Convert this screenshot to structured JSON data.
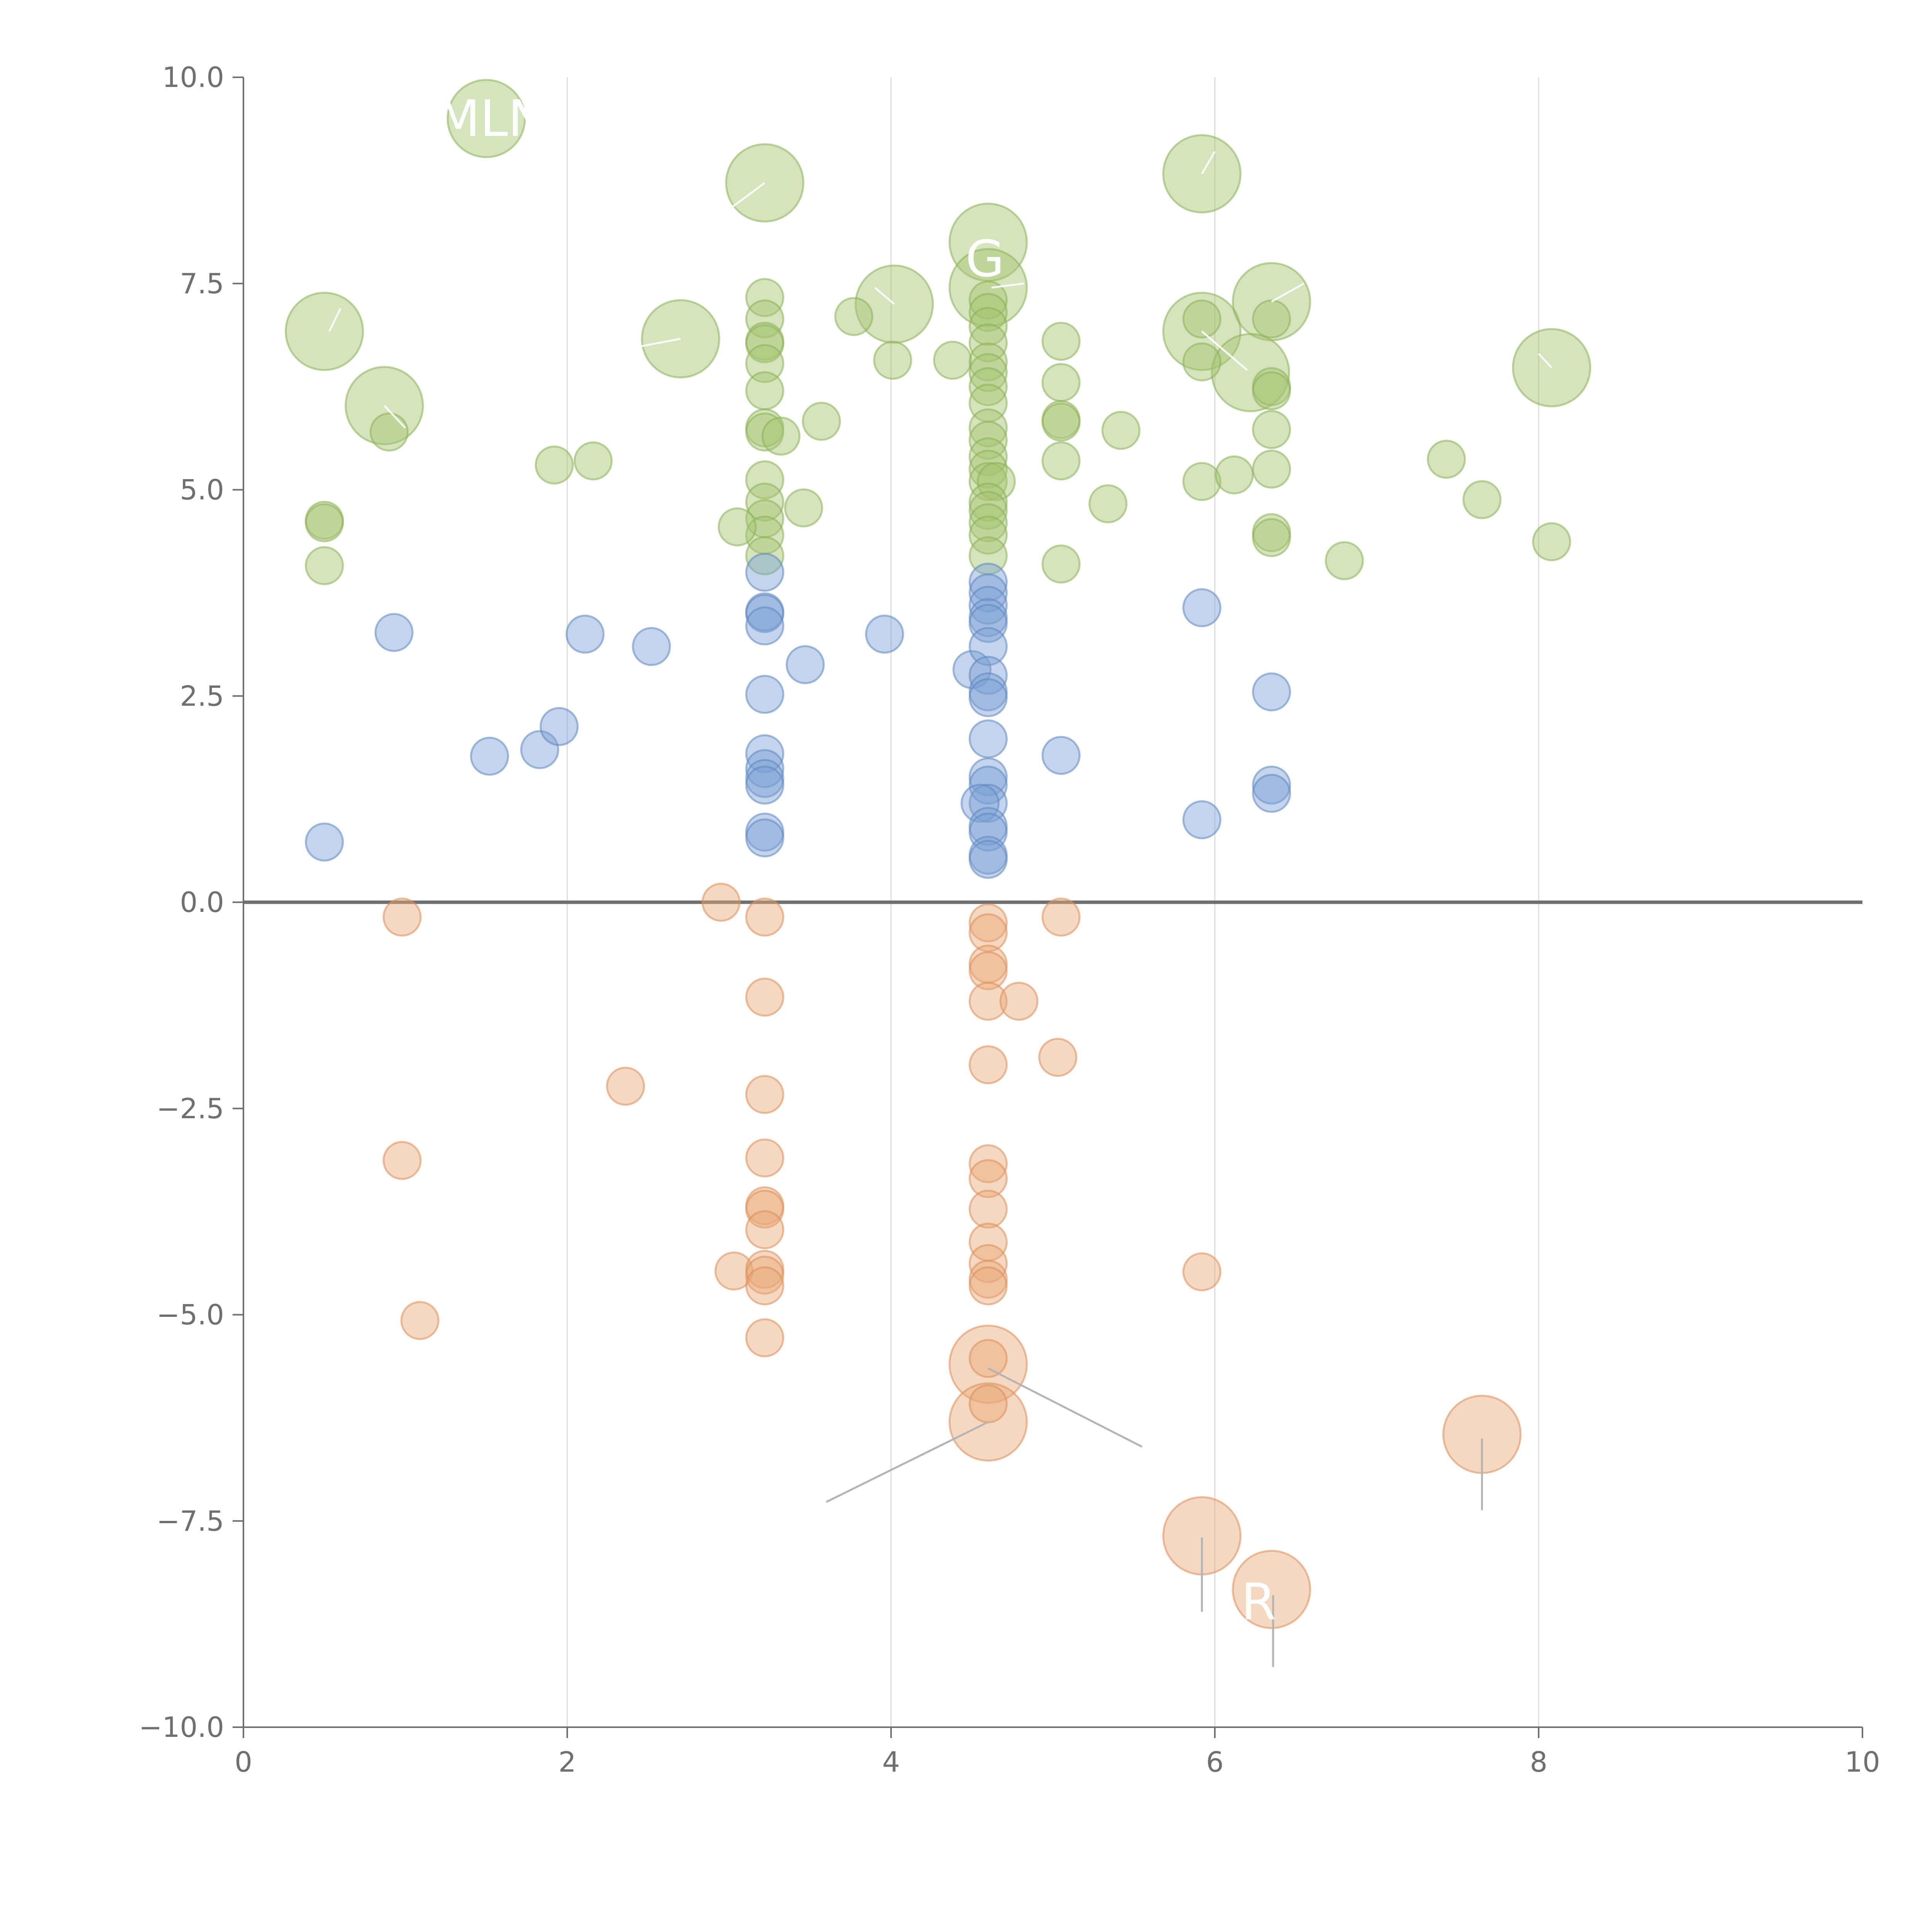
{
  "chart_data": {
    "type": "scatter",
    "title": "",
    "xlabel": "",
    "ylabel": "",
    "xlim": [
      0,
      10
    ],
    "ylim": [
      -10,
      10
    ],
    "x_ticks": [
      0,
      2,
      4,
      6,
      8,
      10
    ],
    "y_ticks": [
      -10,
      -7.5,
      -5,
      -2.5,
      0,
      2.5,
      5,
      7.5,
      10
    ],
    "x_tick_labels": [
      "0",
      "2",
      "4",
      "6",
      "8",
      "10"
    ],
    "y_tick_labels": [
      "−10.0",
      "−7.5",
      "−5.0",
      "−2.5",
      "0.0",
      "2.5",
      "5.0",
      "7.5",
      "10.0"
    ],
    "grid": "vertical",
    "zero_line": true,
    "legend": "none",
    "series": [
      {
        "name": "green",
        "color": "#a3c46e",
        "stroke": "#8ab055",
        "points": [
          {
            "x": 1.5,
            "y": 9.5,
            "s": "large"
          },
          {
            "x": 3.22,
            "y": 8.72,
            "s": "large"
          },
          {
            "x": 5.92,
            "y": 8.83,
            "s": "large"
          },
          {
            "x": 4.6,
            "y": 8.0,
            "s": "large"
          },
          {
            "x": 4.6,
            "y": 7.45,
            "s": "large"
          },
          {
            "x": 4.02,
            "y": 7.25,
            "s": "large"
          },
          {
            "x": 6.35,
            "y": 7.28,
            "s": "large"
          },
          {
            "x": 0.5,
            "y": 6.92,
            "s": "large"
          },
          {
            "x": 2.7,
            "y": 6.83,
            "s": "large"
          },
          {
            "x": 5.92,
            "y": 6.92,
            "s": "large"
          },
          {
            "x": 6.22,
            "y": 6.42,
            "s": "large"
          },
          {
            "x": 8.08,
            "y": 6.48,
            "s": "large"
          },
          {
            "x": 0.87,
            "y": 6.02,
            "s": "large"
          },
          {
            "x": 0.9,
            "y": 5.7
          },
          {
            "x": 0.5,
            "y": 4.63
          },
          {
            "x": 0.5,
            "y": 4.6
          },
          {
            "x": 0.5,
            "y": 4.08
          },
          {
            "x": 1.92,
            "y": 5.3
          },
          {
            "x": 2.16,
            "y": 5.35
          },
          {
            "x": 3.22,
            "y": 7.33
          },
          {
            "x": 3.22,
            "y": 7.07
          },
          {
            "x": 3.22,
            "y": 6.8
          },
          {
            "x": 3.22,
            "y": 6.77
          },
          {
            "x": 3.22,
            "y": 6.53
          },
          {
            "x": 3.22,
            "y": 6.2
          },
          {
            "x": 3.22,
            "y": 5.75
          },
          {
            "x": 3.22,
            "y": 5.7
          },
          {
            "x": 3.22,
            "y": 5.12
          },
          {
            "x": 3.22,
            "y": 4.85
          },
          {
            "x": 3.22,
            "y": 4.65
          },
          {
            "x": 3.22,
            "y": 4.45
          },
          {
            "x": 3.22,
            "y": 4.2
          },
          {
            "x": 3.05,
            "y": 4.55
          },
          {
            "x": 3.32,
            "y": 5.65
          },
          {
            "x": 3.46,
            "y": 4.78
          },
          {
            "x": 3.57,
            "y": 5.83
          },
          {
            "x": 3.77,
            "y": 7.1
          },
          {
            "x": 4.01,
            "y": 6.57
          },
          {
            "x": 4.38,
            "y": 6.57
          },
          {
            "x": 4.6,
            "y": 7.3
          },
          {
            "x": 4.6,
            "y": 7.15
          },
          {
            "x": 4.6,
            "y": 6.98
          },
          {
            "x": 4.6,
            "y": 6.78
          },
          {
            "x": 4.6,
            "y": 6.55
          },
          {
            "x": 4.6,
            "y": 6.42
          },
          {
            "x": 4.6,
            "y": 6.25
          },
          {
            "x": 4.6,
            "y": 6.05
          },
          {
            "x": 4.6,
            "y": 5.75
          },
          {
            "x": 4.6,
            "y": 5.6
          },
          {
            "x": 4.6,
            "y": 5.4
          },
          {
            "x": 4.6,
            "y": 5.25
          },
          {
            "x": 4.6,
            "y": 5.1
          },
          {
            "x": 4.65,
            "y": 5.1
          },
          {
            "x": 4.6,
            "y": 4.85
          },
          {
            "x": 4.6,
            "y": 4.75
          },
          {
            "x": 4.6,
            "y": 4.6
          },
          {
            "x": 4.6,
            "y": 4.45
          },
          {
            "x": 4.6,
            "y": 4.2
          },
          {
            "x": 5.05,
            "y": 6.8
          },
          {
            "x": 5.05,
            "y": 6.3
          },
          {
            "x": 5.05,
            "y": 5.85
          },
          {
            "x": 5.05,
            "y": 5.82
          },
          {
            "x": 5.05,
            "y": 5.35
          },
          {
            "x": 5.05,
            "y": 4.1
          },
          {
            "x": 5.34,
            "y": 4.83
          },
          {
            "x": 5.42,
            "y": 5.72
          },
          {
            "x": 5.92,
            "y": 7.07
          },
          {
            "x": 5.92,
            "y": 6.55
          },
          {
            "x": 5.92,
            "y": 5.1
          },
          {
            "x": 6.12,
            "y": 5.18
          },
          {
            "x": 6.35,
            "y": 7.07
          },
          {
            "x": 6.35,
            "y": 6.25
          },
          {
            "x": 6.35,
            "y": 6.2
          },
          {
            "x": 6.35,
            "y": 5.73
          },
          {
            "x": 6.35,
            "y": 5.25
          },
          {
            "x": 6.35,
            "y": 4.48
          },
          {
            "x": 6.35,
            "y": 4.42
          },
          {
            "x": 6.8,
            "y": 4.14
          },
          {
            "x": 7.43,
            "y": 5.37
          },
          {
            "x": 7.65,
            "y": 4.88
          },
          {
            "x": 8.08,
            "y": 4.37
          }
        ]
      },
      {
        "name": "blue",
        "color": "#7aa0d4",
        "stroke": "#5f86c0",
        "points": [
          {
            "x": 0.93,
            "y": 3.27
          },
          {
            "x": 0.5,
            "y": 0.73
          },
          {
            "x": 1.52,
            "y": 1.77
          },
          {
            "x": 1.83,
            "y": 1.85
          },
          {
            "x": 1.95,
            "y": 2.13
          },
          {
            "x": 2.11,
            "y": 3.25
          },
          {
            "x": 2.52,
            "y": 3.1
          },
          {
            "x": 3.22,
            "y": 4.0
          },
          {
            "x": 3.22,
            "y": 3.52
          },
          {
            "x": 3.22,
            "y": 3.5
          },
          {
            "x": 3.22,
            "y": 3.35
          },
          {
            "x": 3.22,
            "y": 2.52
          },
          {
            "x": 3.22,
            "y": 1.8
          },
          {
            "x": 3.22,
            "y": 1.62
          },
          {
            "x": 3.22,
            "y": 1.5
          },
          {
            "x": 3.22,
            "y": 1.42
          },
          {
            "x": 3.22,
            "y": 0.85
          },
          {
            "x": 3.22,
            "y": 0.78
          },
          {
            "x": 3.47,
            "y": 2.88
          },
          {
            "x": 3.96,
            "y": 3.25
          },
          {
            "x": 4.5,
            "y": 2.82
          },
          {
            "x": 4.6,
            "y": 3.88
          },
          {
            "x": 4.6,
            "y": 3.75
          },
          {
            "x": 4.6,
            "y": 3.6
          },
          {
            "x": 4.6,
            "y": 3.45
          },
          {
            "x": 4.6,
            "y": 3.38
          },
          {
            "x": 4.6,
            "y": 3.1
          },
          {
            "x": 4.6,
            "y": 2.75
          },
          {
            "x": 4.6,
            "y": 2.55
          },
          {
            "x": 4.6,
            "y": 2.48
          },
          {
            "x": 4.6,
            "y": 1.98
          },
          {
            "x": 4.6,
            "y": 1.52
          },
          {
            "x": 4.6,
            "y": 1.42
          },
          {
            "x": 4.6,
            "y": 1.2
          },
          {
            "x": 4.55,
            "y": 1.2
          },
          {
            "x": 4.6,
            "y": 0.92
          },
          {
            "x": 4.6,
            "y": 0.85
          },
          {
            "x": 4.6,
            "y": 0.57
          },
          {
            "x": 4.6,
            "y": 0.52
          },
          {
            "x": 5.05,
            "y": 1.78
          },
          {
            "x": 5.92,
            "y": 3.57
          },
          {
            "x": 5.92,
            "y": 1.0
          },
          {
            "x": 6.35,
            "y": 2.55
          },
          {
            "x": 6.35,
            "y": 1.42
          },
          {
            "x": 6.35,
            "y": 1.32
          }
        ]
      },
      {
        "name": "orange",
        "color": "#e9a878",
        "stroke": "#dc8e58",
        "points": [
          {
            "x": 4.6,
            "y": -5.6,
            "s": "large"
          },
          {
            "x": 4.6,
            "y": -6.3,
            "s": "large"
          },
          {
            "x": 5.92,
            "y": -7.68,
            "s": "large"
          },
          {
            "x": 6.35,
            "y": -8.33,
            "s": "large"
          },
          {
            "x": 7.65,
            "y": -6.45,
            "s": "large"
          },
          {
            "x": 0.98,
            "y": -0.18
          },
          {
            "x": 0.98,
            "y": -3.13
          },
          {
            "x": 1.09,
            "y": -5.07
          },
          {
            "x": 2.36,
            "y": -2.23
          },
          {
            "x": 2.95,
            "y": 0.0
          },
          {
            "x": 3.03,
            "y": -4.47
          },
          {
            "x": 3.22,
            "y": -0.18
          },
          {
            "x": 3.22,
            "y": -1.15
          },
          {
            "x": 3.22,
            "y": -2.33
          },
          {
            "x": 3.22,
            "y": -3.1
          },
          {
            "x": 3.22,
            "y": -3.68
          },
          {
            "x": 3.22,
            "y": -3.72
          },
          {
            "x": 3.22,
            "y": -3.97
          },
          {
            "x": 3.22,
            "y": -4.45
          },
          {
            "x": 3.22,
            "y": -4.52
          },
          {
            "x": 3.22,
            "y": -4.65
          },
          {
            "x": 3.22,
            "y": -5.28
          },
          {
            "x": 4.6,
            "y": -0.25
          },
          {
            "x": 4.6,
            "y": -0.37
          },
          {
            "x": 4.6,
            "y": -0.75
          },
          {
            "x": 4.6,
            "y": -0.83
          },
          {
            "x": 4.6,
            "y": -1.2
          },
          {
            "x": 4.6,
            "y": -1.97
          },
          {
            "x": 4.6,
            "y": -3.17
          },
          {
            "x": 4.6,
            "y": -3.35
          },
          {
            "x": 4.6,
            "y": -3.72
          },
          {
            "x": 4.6,
            "y": -4.12
          },
          {
            "x": 4.6,
            "y": -4.38
          },
          {
            "x": 4.6,
            "y": -4.57
          },
          {
            "x": 4.6,
            "y": -4.65
          },
          {
            "x": 4.6,
            "y": -5.53
          },
          {
            "x": 4.6,
            "y": -6.08
          },
          {
            "x": 4.79,
            "y": -1.2
          },
          {
            "x": 5.05,
            "y": -0.18
          },
          {
            "x": 5.03,
            "y": -1.88
          },
          {
            "x": 5.92,
            "y": -4.48
          }
        ]
      }
    ],
    "labels": [
      {
        "text": "MLN",
        "x": 1.53,
        "y": 9.5,
        "px": 1.53,
        "py": 9.5,
        "color": "#ffffff"
      },
      {
        "text": "G",
        "x": 4.58,
        "y": 7.8,
        "px": 4.58,
        "py": 7.8,
        "color": "#ffffff"
      },
      {
        "text": "R",
        "x": 6.27,
        "y": -8.48,
        "px": 6.27,
        "py": -8.48,
        "color": "#ffffff"
      }
    ],
    "leader_lines": [
      {
        "x1": 4.6,
        "y1": -5.65,
        "x2": 5.55,
        "y2": -6.6,
        "style": "gray"
      },
      {
        "x1": 4.6,
        "y1": -6.3,
        "x2": 3.6,
        "y2": -7.27,
        "style": "gray"
      },
      {
        "x1": 5.92,
        "y1": -7.7,
        "x2": 5.92,
        "y2": -8.6,
        "style": "gray"
      },
      {
        "x1": 6.36,
        "y1": -8.4,
        "x2": 6.36,
        "y2": -9.27,
        "style": "gray"
      },
      {
        "x1": 7.65,
        "y1": -6.5,
        "x2": 7.65,
        "y2": -7.37,
        "style": "gray"
      },
      {
        "x1": 3.22,
        "y1": 8.72,
        "x2": 3.0,
        "y2": 8.4,
        "style": "light"
      },
      {
        "x1": 4.02,
        "y1": 7.25,
        "x2": 3.9,
        "y2": 7.45,
        "style": "light"
      },
      {
        "x1": 4.62,
        "y1": 7.45,
        "x2": 4.82,
        "y2": 7.5,
        "style": "light"
      },
      {
        "x1": 5.92,
        "y1": 8.83,
        "x2": 6.0,
        "y2": 9.1,
        "style": "light"
      },
      {
        "x1": 6.35,
        "y1": 7.28,
        "x2": 6.55,
        "y2": 7.5,
        "style": "light"
      },
      {
        "x1": 0.53,
        "y1": 6.92,
        "x2": 0.6,
        "y2": 7.2,
        "style": "light"
      },
      {
        "x1": 2.7,
        "y1": 6.83,
        "x2": 2.35,
        "y2": 6.7,
        "style": "light"
      },
      {
        "x1": 0.87,
        "y1": 6.02,
        "x2": 1.0,
        "y2": 5.75,
        "style": "light"
      },
      {
        "x1": 5.92,
        "y1": 6.92,
        "x2": 6.2,
        "y2": 6.45,
        "style": "light"
      },
      {
        "x1": 8.08,
        "y1": 6.48,
        "x2": 8.0,
        "y2": 6.65,
        "style": "light"
      }
    ]
  }
}
